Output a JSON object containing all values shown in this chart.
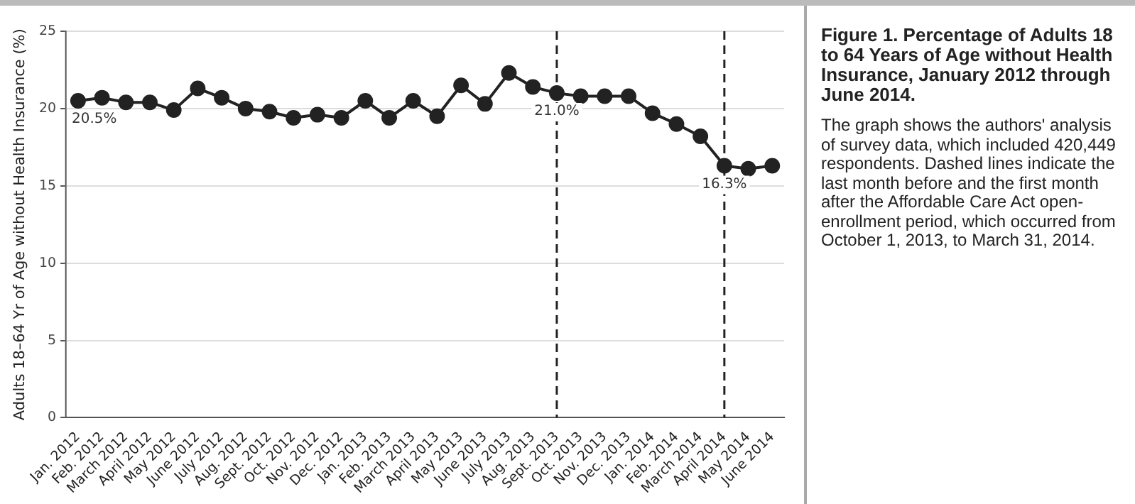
{
  "chart_data": {
    "type": "line",
    "title": "Figure 1. Percentage of Adults 18 to 64 Years of Age without Health Insurance, January 2012 through June 2014.",
    "ylabel": "Adults 18–64 Yr of Age without Health Insurance (%)",
    "annotations": [
      "The graph shows the authors' analysis of survey data, which included 420,449 respondents. Dashed lines indicate the last month before and the first month after the Affordable Care Act open-enrollment period, which occurred from October 1, 2013, to March 31, 2014."
    ],
    "categories": [
      "Jan. 2012",
      "Feb. 2012",
      "March 2012",
      "April 2012",
      "May 2012",
      "June 2012",
      "July 2012",
      "Aug. 2012",
      "Sept. 2012",
      "Oct. 2012",
      "Nov. 2012",
      "Dec. 2012",
      "Jan. 2013",
      "Feb. 2013",
      "March 2013",
      "April 2013",
      "May 2013",
      "June 2013",
      "July 2013",
      "Aug. 2013",
      "Sept. 2013",
      "Oct. 2013",
      "Nov. 2013",
      "Dec. 2013",
      "Jan. 2014",
      "Feb. 2014",
      "March 2014",
      "April 2014",
      "May 2014",
      "June 2014"
    ],
    "series": [
      {
        "color": "#222222",
        "values": [
          20.5,
          20.7,
          20.4,
          20.4,
          19.9,
          21.3,
          20.7,
          20.0,
          19.8,
          19.4,
          19.6,
          19.4,
          20.5,
          19.4,
          20.5,
          19.5,
          21.5,
          20.3,
          22.3,
          21.4,
          21.0,
          20.8,
          20.8,
          20.8,
          19.7,
          19.0,
          18.2,
          16.3,
          16.1,
          16.3
        ],
        "value_labels": [
          "20.5%",
          null,
          null,
          null,
          null,
          null,
          null,
          null,
          null,
          null,
          null,
          null,
          null,
          null,
          null,
          null,
          null,
          null,
          null,
          null,
          "21.0%",
          null,
          null,
          null,
          null,
          null,
          null,
          "16.3%",
          null,
          null
        ]
      }
    ],
    "ref_lines": [
      {
        "axis": "x",
        "value": "Sept. 2013",
        "color": "#222222",
        "line_style": "dashed"
      },
      {
        "axis": "x",
        "value": "April 2014",
        "color": "#222222",
        "line_style": "dashed"
      }
    ],
    "ylim": [
      0,
      25
    ],
    "yticks": [
      0,
      5,
      10,
      15,
      20,
      25
    ],
    "grid": "y",
    "legend": false,
    "marker": "circle",
    "line_style": "solid"
  }
}
